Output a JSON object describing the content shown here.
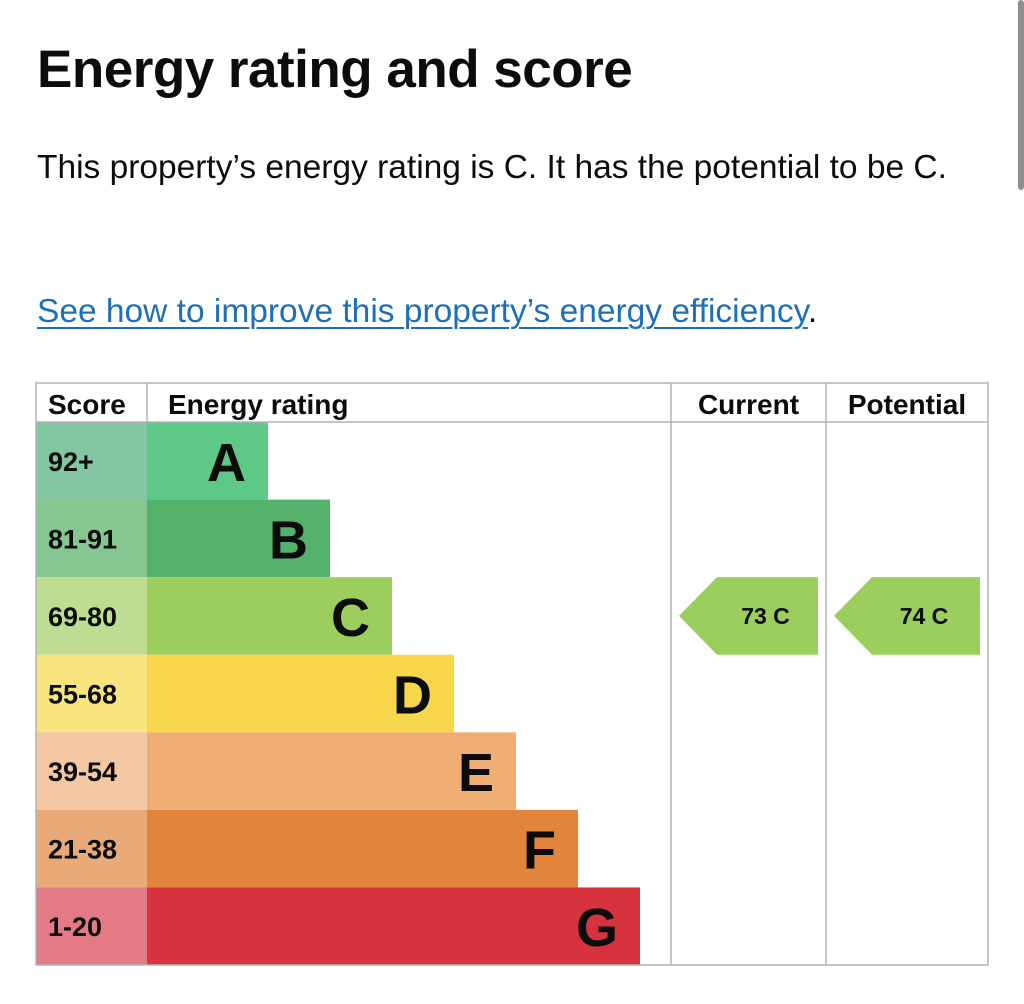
{
  "page": {
    "title": "Energy rating and score",
    "summary": "This property’s energy rating is C. It has the potential to be C.",
    "improve_link": "See how to improve this property’s energy efficiency",
    "improve_link_suffix": "."
  },
  "chart_data": {
    "type": "table",
    "columns": [
      "Score",
      "Energy rating",
      "Current",
      "Potential"
    ],
    "bands": [
      {
        "letter": "A",
        "range": "92+",
        "color": "#5ec987",
        "score_color": "#82c6a4"
      },
      {
        "letter": "B",
        "range": "81-91",
        "color": "#54b26c",
        "score_color": "#86c691"
      },
      {
        "letter": "C",
        "range": "69-80",
        "color": "#9cce5d",
        "score_color": "#bedd93"
      },
      {
        "letter": "D",
        "range": "55-68",
        "color": "#f7d64b",
        "score_color": "#fae480"
      },
      {
        "letter": "E",
        "range": "39-54",
        "color": "#efae74",
        "score_color": "#f4c8a2"
      },
      {
        "letter": "F",
        "range": "21-38",
        "color": "#e0853b",
        "score_color": "#e8aa78"
      },
      {
        "letter": "G",
        "range": "1-20",
        "color": "#d7333f",
        "score_color": "#e47a86"
      }
    ],
    "current": {
      "score": 73,
      "letter": "C",
      "label": "73  C",
      "color": "#9cce5d"
    },
    "potential": {
      "score": 74,
      "letter": "C",
      "label": "74  C",
      "color": "#9cce5d"
    }
  }
}
